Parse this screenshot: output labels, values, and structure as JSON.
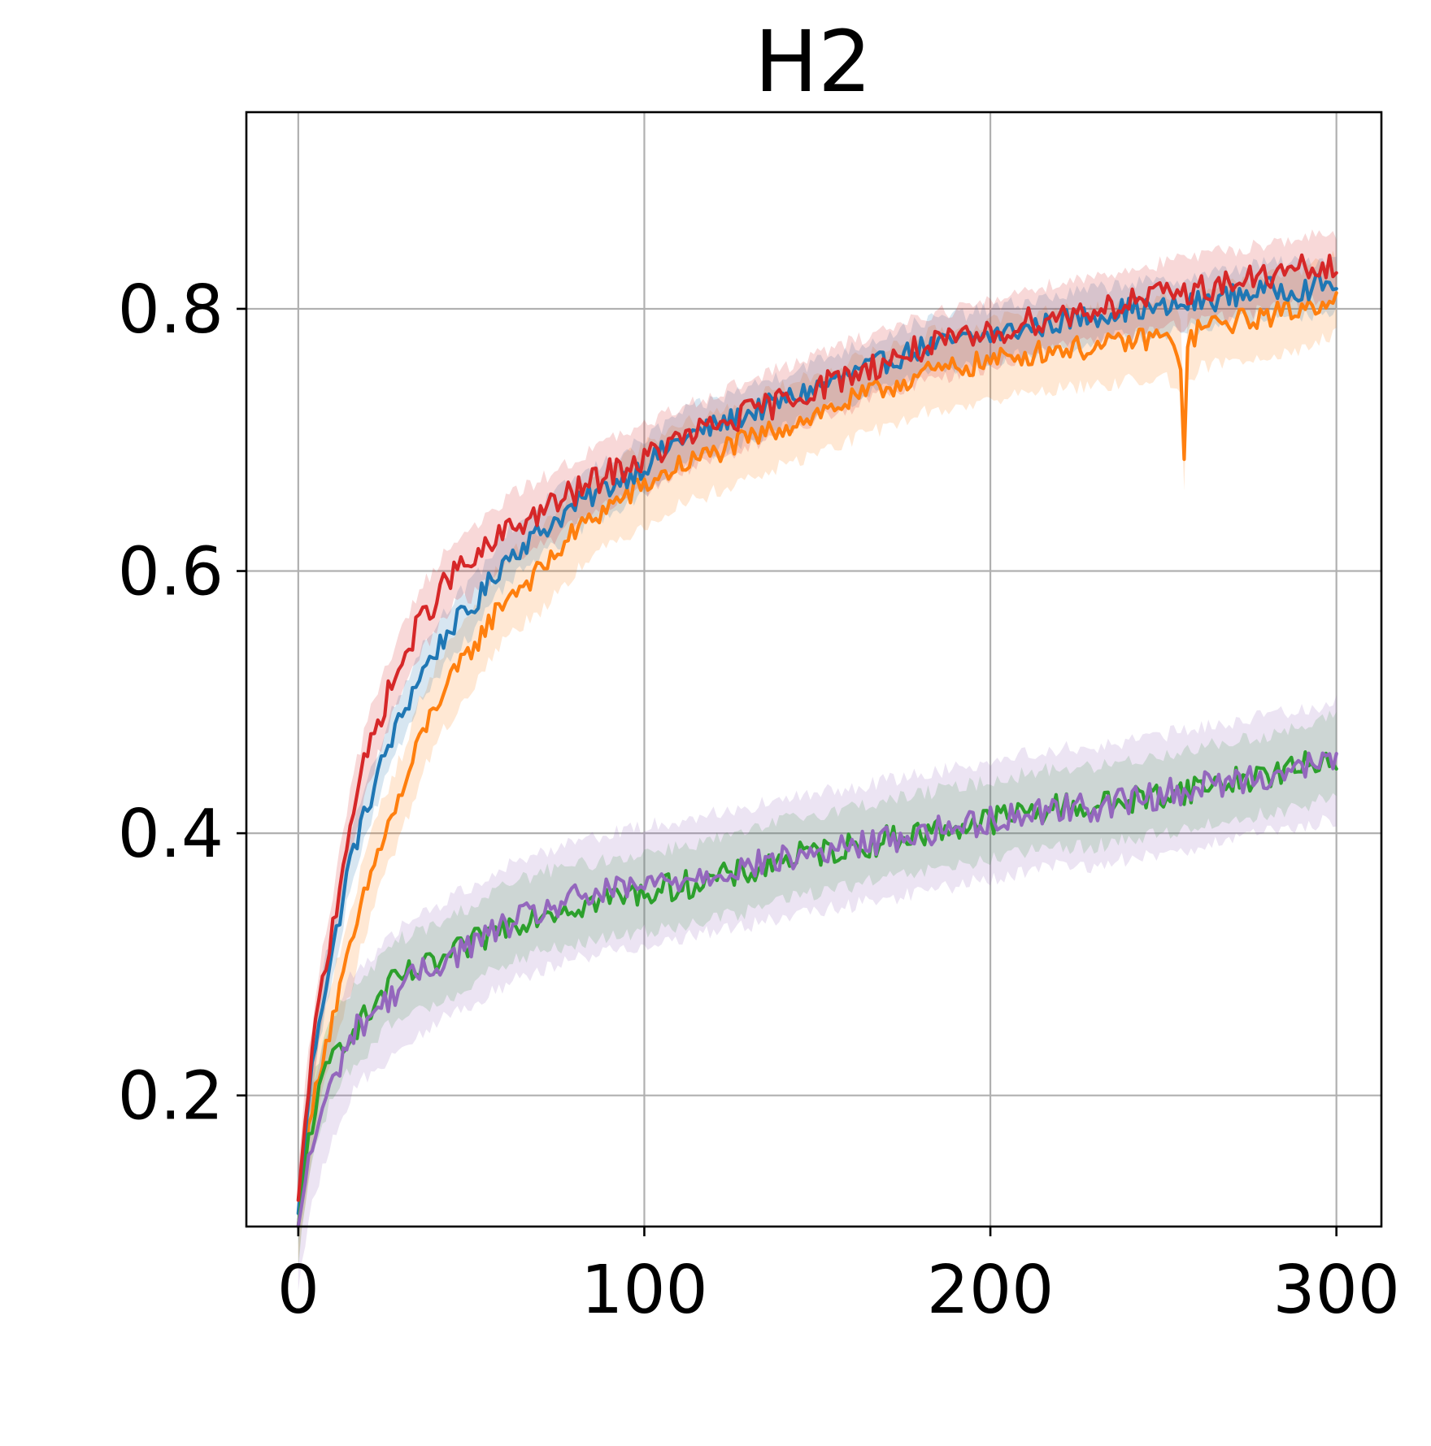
{
  "chart_data": {
    "type": "line",
    "title": "H2",
    "xlabel": "",
    "ylabel": "",
    "xlim": [
      -15,
      313
    ],
    "ylim": [
      0.1,
      0.95
    ],
    "xticks": [
      0,
      100,
      200,
      300
    ],
    "xtick_labels": [
      "0",
      "100",
      "200",
      "300"
    ],
    "yticks": [
      0.2,
      0.4,
      0.6,
      0.8
    ],
    "ytick_labels": [
      "0.2",
      "0.4",
      "0.6",
      "0.8"
    ],
    "grid": true,
    "legend": "none",
    "x_range": [
      0,
      300
    ],
    "series": [
      {
        "color": "#1f77b4",
        "band_halfwidth": 0.02,
        "x": [
          0,
          3,
          6,
          10,
          15,
          20,
          25,
          30,
          35,
          40,
          45,
          50,
          60,
          70,
          80,
          90,
          100,
          110,
          120,
          130,
          140,
          150,
          160,
          170,
          180,
          190,
          200,
          210,
          220,
          230,
          240,
          250,
          260,
          270,
          280,
          290,
          300
        ],
        "y": [
          0.11,
          0.2,
          0.26,
          0.31,
          0.38,
          0.42,
          0.46,
          0.49,
          0.52,
          0.54,
          0.56,
          0.57,
          0.61,
          0.63,
          0.65,
          0.665,
          0.68,
          0.7,
          0.71,
          0.72,
          0.73,
          0.74,
          0.75,
          0.76,
          0.77,
          0.775,
          0.78,
          0.785,
          0.79,
          0.795,
          0.8,
          0.8,
          0.805,
          0.81,
          0.815,
          0.815,
          0.82
        ]
      },
      {
        "color": "#ff7f0e",
        "band_halfwidth": 0.03,
        "x": [
          0,
          3,
          6,
          10,
          15,
          20,
          25,
          30,
          35,
          40,
          45,
          50,
          60,
          70,
          80,
          90,
          100,
          110,
          120,
          130,
          140,
          150,
          160,
          170,
          180,
          190,
          200,
          210,
          220,
          230,
          240,
          250,
          255,
          256,
          257,
          260,
          270,
          280,
          290,
          300
        ],
        "y": [
          0.1,
          0.17,
          0.22,
          0.26,
          0.31,
          0.36,
          0.4,
          0.43,
          0.47,
          0.5,
          0.52,
          0.54,
          0.58,
          0.6,
          0.63,
          0.65,
          0.665,
          0.68,
          0.69,
          0.7,
          0.71,
          0.72,
          0.73,
          0.74,
          0.75,
          0.755,
          0.76,
          0.765,
          0.77,
          0.77,
          0.775,
          0.78,
          0.76,
          0.69,
          0.77,
          0.785,
          0.79,
          0.795,
          0.8,
          0.81
        ]
      },
      {
        "color": "#2ca02c",
        "band_halfwidth": 0.03,
        "x": [
          0,
          3,
          6,
          10,
          15,
          20,
          25,
          30,
          40,
          50,
          60,
          70,
          80,
          90,
          100,
          110,
          120,
          130,
          140,
          150,
          160,
          170,
          180,
          190,
          200,
          210,
          220,
          230,
          240,
          250,
          260,
          270,
          280,
          290,
          300
        ],
        "y": [
          0.1,
          0.17,
          0.2,
          0.23,
          0.25,
          0.26,
          0.28,
          0.29,
          0.3,
          0.315,
          0.33,
          0.34,
          0.345,
          0.35,
          0.355,
          0.36,
          0.365,
          0.37,
          0.38,
          0.385,
          0.39,
          0.395,
          0.4,
          0.405,
          0.41,
          0.415,
          0.42,
          0.42,
          0.425,
          0.43,
          0.435,
          0.44,
          0.445,
          0.45,
          0.46
        ]
      },
      {
        "color": "#d62728",
        "band_halfwidth": 0.025,
        "x": [
          0,
          3,
          6,
          10,
          15,
          20,
          25,
          30,
          35,
          40,
          45,
          50,
          60,
          70,
          80,
          90,
          100,
          110,
          120,
          130,
          140,
          150,
          160,
          170,
          180,
          190,
          200,
          210,
          220,
          230,
          240,
          250,
          260,
          270,
          280,
          290,
          300
        ],
        "y": [
          0.12,
          0.21,
          0.27,
          0.33,
          0.41,
          0.46,
          0.5,
          0.53,
          0.56,
          0.58,
          0.6,
          0.605,
          0.63,
          0.645,
          0.66,
          0.675,
          0.685,
          0.7,
          0.71,
          0.72,
          0.73,
          0.74,
          0.75,
          0.76,
          0.77,
          0.775,
          0.78,
          0.79,
          0.795,
          0.8,
          0.805,
          0.81,
          0.815,
          0.82,
          0.825,
          0.83,
          0.83
        ]
      },
      {
        "color": "#9467bd",
        "band_halfwidth": 0.045,
        "x": [
          0,
          3,
          6,
          10,
          15,
          20,
          25,
          30,
          40,
          50,
          60,
          70,
          80,
          90,
          100,
          110,
          120,
          130,
          140,
          150,
          160,
          170,
          180,
          190,
          200,
          210,
          220,
          230,
          240,
          250,
          260,
          270,
          280,
          290,
          300
        ],
        "y": [
          0.1,
          0.15,
          0.18,
          0.21,
          0.245,
          0.26,
          0.27,
          0.285,
          0.3,
          0.315,
          0.33,
          0.34,
          0.35,
          0.355,
          0.36,
          0.365,
          0.37,
          0.375,
          0.38,
          0.385,
          0.39,
          0.395,
          0.4,
          0.405,
          0.41,
          0.415,
          0.42,
          0.42,
          0.425,
          0.43,
          0.435,
          0.44,
          0.445,
          0.45,
          0.455
        ]
      }
    ]
  }
}
